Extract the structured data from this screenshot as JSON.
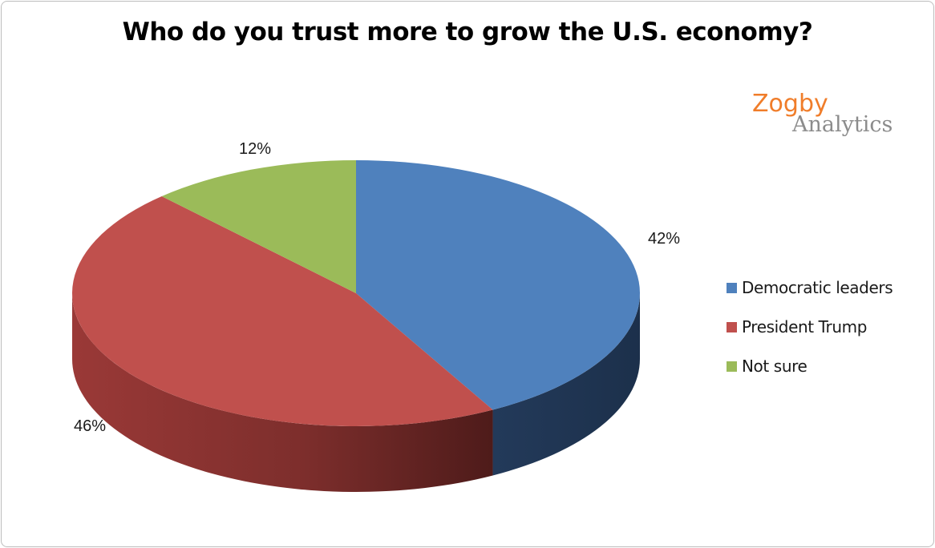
{
  "chart_data": {
    "type": "pie",
    "title": "Who do you trust more to grow the U.S. economy?",
    "slices": [
      {
        "label": "Democratic leaders",
        "value": 42,
        "display": "42%",
        "color": "#4f81bd",
        "side_color": "#1f3350"
      },
      {
        "label": "President Trump",
        "value": 46,
        "display": "46%",
        "color": "#c0504d",
        "side_color": "#6e2826"
      },
      {
        "label": "Not sure",
        "value": 12,
        "display": "12%",
        "color": "#9bbb59",
        "side_color": "#5b7330"
      }
    ],
    "legend_position": "right",
    "style": "3d"
  },
  "logo": {
    "brand": "Zogby",
    "sub": "Analytics"
  }
}
